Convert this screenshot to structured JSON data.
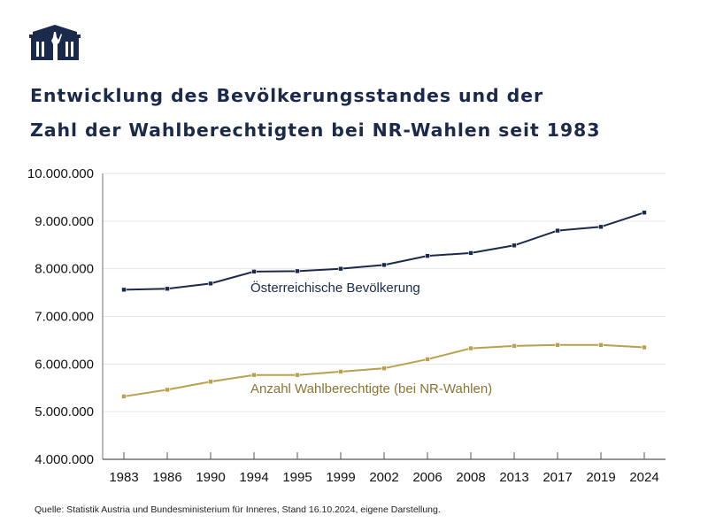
{
  "header": {
    "logo": "parliament-building-icon",
    "title_line1": "Entwicklung des Bevölkerungsstandes und der",
    "title_line2": "Zahl der Wahlberechtigten bei NR-Wahlen seit 1983"
  },
  "footer": {
    "source": "Quelle: Statistik Austria und Bundesministerium für Inneres, Stand 16.10.2024, eigene Darstellung."
  },
  "colors": {
    "population": "#1b2a4a",
    "eligible": "#b9a04f",
    "grid": "#e6e6e6",
    "axis": "#555555"
  },
  "chart_data": {
    "type": "line",
    "title": "Entwicklung des Bevölkerungsstandes und der Zahl der Wahlberechtigten bei NR-Wahlen seit 1983",
    "xlabel": "",
    "ylabel": "",
    "categories": [
      "1983",
      "1986",
      "1990",
      "1994",
      "1995",
      "1999",
      "2002",
      "2006",
      "2008",
      "2013",
      "2017",
      "2019",
      "2024"
    ],
    "ylim": [
      4000000,
      10000000
    ],
    "yticks": [
      4000000,
      5000000,
      6000000,
      7000000,
      8000000,
      9000000,
      10000000
    ],
    "ytick_labels": [
      "4.000.000",
      "5.000.000",
      "6.000.000",
      "7.000.000",
      "8.000.000",
      "9.000.000",
      "10.000.000"
    ],
    "grid": true,
    "legend": "inline labels",
    "series": [
      {
        "name": "Österreichische Bevölkerung",
        "color": "#1b2a4a",
        "values": [
          7560000,
          7580000,
          7690000,
          7940000,
          7950000,
          8000000,
          8080000,
          8270000,
          8330000,
          8490000,
          8800000,
          8880000,
          9180000
        ]
      },
      {
        "name": "Anzahl Wahlberechtigte (bei NR-Wahlen)",
        "color": "#b9a04f",
        "values": [
          5320000,
          5460000,
          5630000,
          5770000,
          5770000,
          5840000,
          5910000,
          6100000,
          6330000,
          6380000,
          6400000,
          6400000,
          6350000
        ]
      }
    ]
  }
}
